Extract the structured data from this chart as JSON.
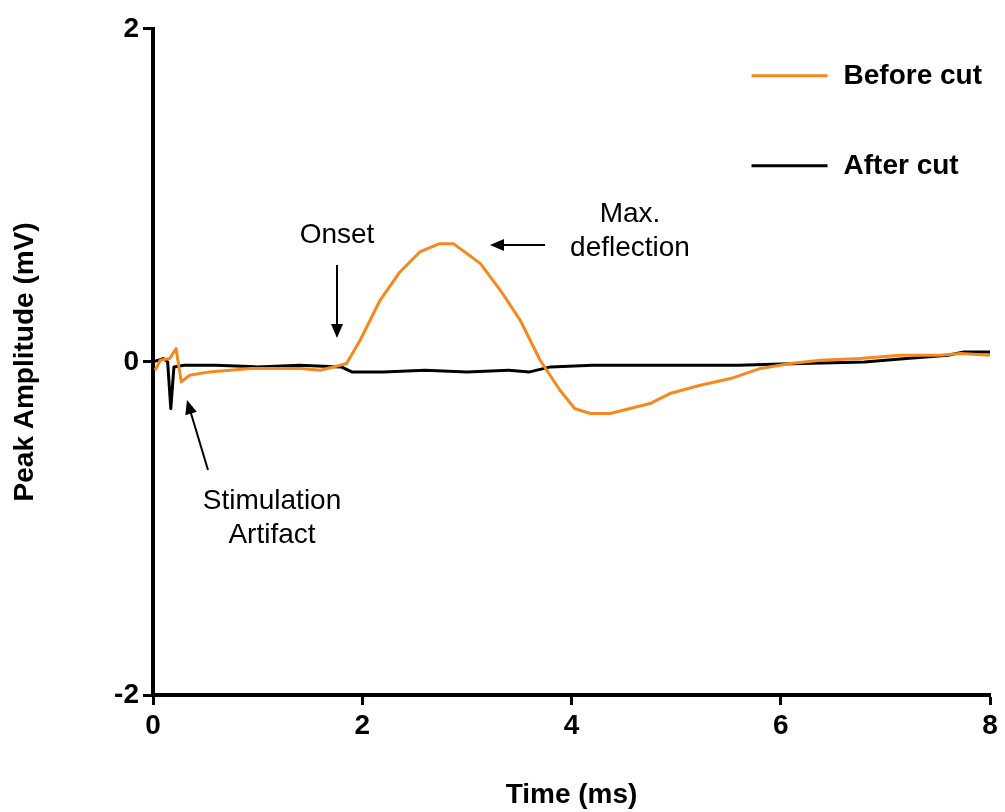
{
  "chart_data": {
    "type": "line",
    "xlabel": "Time (ms)",
    "ylabel": "Peak Amplitude (mV)",
    "xlim": [
      0,
      8
    ],
    "xticks": [
      0,
      2,
      4,
      6,
      8
    ],
    "ylim": [
      -2,
      2
    ],
    "yticks": [
      -2,
      0,
      2
    ],
    "grid": false,
    "legend": "top right",
    "marker": "none",
    "line_style": "solid",
    "series": [
      {
        "name": "Before cut",
        "color": "#f5891f",
        "x": [
          0.02,
          0.07,
          0.16,
          0.22,
          0.27,
          0.35,
          0.54,
          0.93,
          1.41,
          1.6,
          1.79,
          1.85,
          1.98,
          2.17,
          2.36,
          2.55,
          2.74,
          2.87,
          2.98,
          3.13,
          3.32,
          3.51,
          3.7,
          3.89,
          4.03,
          4.18,
          4.37,
          4.56,
          4.75,
          4.94,
          5.23,
          5.52,
          5.8,
          6.09,
          6.38,
          6.76,
          7.14,
          7.52,
          7.72,
          8.0
        ],
        "values": [
          -0.05,
          0.01,
          0.02,
          0.08,
          -0.12,
          -0.08,
          -0.06,
          -0.04,
          -0.04,
          -0.05,
          -0.02,
          -0.01,
          0.13,
          0.37,
          0.54,
          0.66,
          0.71,
          0.71,
          0.66,
          0.59,
          0.43,
          0.25,
          0.01,
          -0.17,
          -0.28,
          -0.31,
          -0.31,
          -0.28,
          -0.25,
          -0.19,
          -0.14,
          -0.1,
          -0.04,
          -0.01,
          0.01,
          0.02,
          0.04,
          0.04,
          0.05,
          0.04
        ]
      },
      {
        "name": "After cut",
        "color": "#000000",
        "x": [
          0,
          0.1,
          0.14,
          0.17,
          0.2,
          0.3,
          0.6,
          1.0,
          1.4,
          1.8,
          1.9,
          2.2,
          2.6,
          3.0,
          3.4,
          3.6,
          3.8,
          4.2,
          5.0,
          5.6,
          6.2,
          6.8,
          7.2,
          7.6,
          7.75,
          8.0
        ],
        "values": [
          0,
          0.02,
          0,
          -0.28,
          -0.03,
          -0.02,
          -0.02,
          -0.03,
          -0.02,
          -0.03,
          -0.06,
          -0.06,
          -0.05,
          -0.06,
          -0.05,
          -0.06,
          -0.03,
          -0.02,
          -0.02,
          -0.02,
          -0.01,
          0.0,
          0.02,
          0.04,
          0.06,
          0.06
        ]
      }
    ],
    "annotations": [
      "Onset",
      "Max.\ndeflection",
      "Stimulation\nArtifact"
    ]
  }
}
